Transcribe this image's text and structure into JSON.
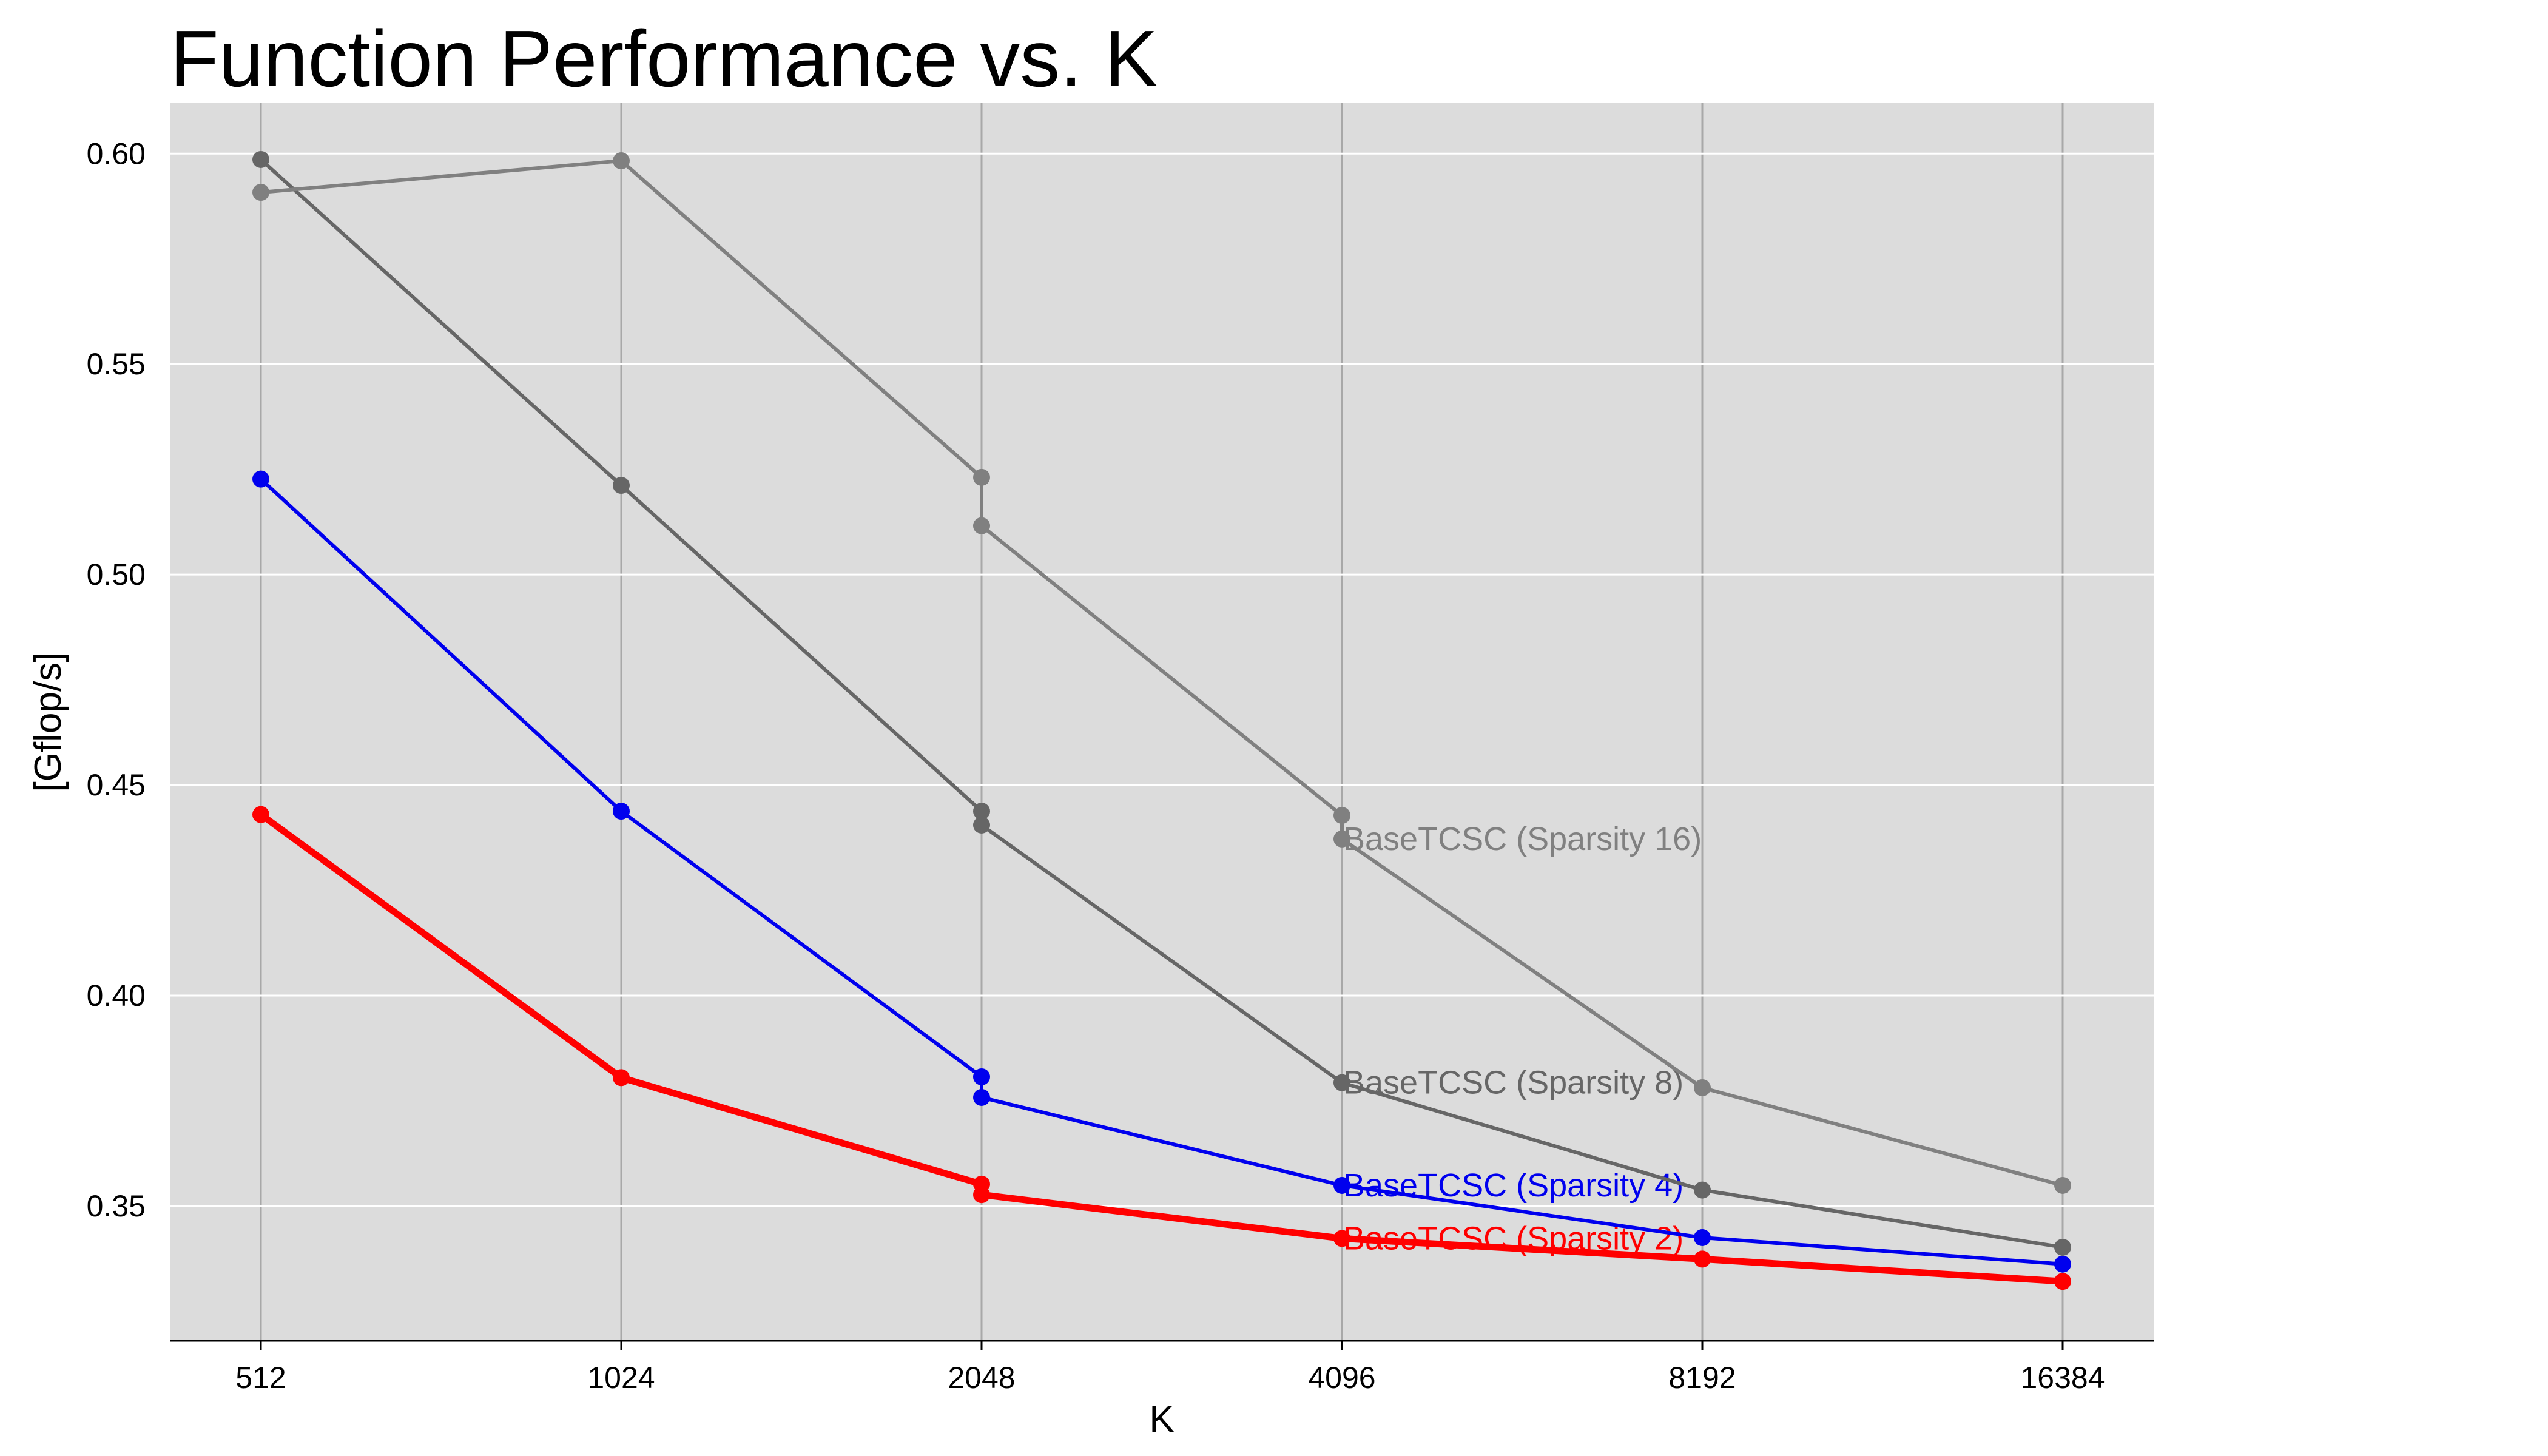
{
  "chart_data": {
    "type": "line",
    "title": "Function Performance vs. K",
    "xlabel": "K",
    "ylabel": "[Gflop/s]",
    "x_scale": "log2",
    "categories": [
      512,
      1024,
      2048,
      4096,
      8192,
      16384
    ],
    "x_tick_labels": [
      "512",
      "1024",
      "2048",
      "4096",
      "8192",
      "16384"
    ],
    "y_ticks": [
      0.35,
      0.4,
      0.45,
      0.5,
      0.55,
      0.6
    ],
    "y_tick_labels": [
      "0.35",
      "0.40",
      "0.45",
      "0.50",
      "0.55",
      "0.60"
    ],
    "ylim": [
      0.318,
      0.612
    ],
    "grid": true,
    "series": [
      {
        "name": "BaseTCSC (Sparsity 2)",
        "color": "#ff0000",
        "line_style": "thick",
        "points": [
          {
            "x": 512,
            "y": 0.443
          },
          {
            "x": 1024,
            "y": 0.3805
          },
          {
            "x": 2048,
            "y": 0.3552
          },
          {
            "x": 2048,
            "y": 0.3527
          },
          {
            "x": 4096,
            "y": 0.3423
          },
          {
            "x": 8192,
            "y": 0.3374
          },
          {
            "x": 16384,
            "y": 0.3321
          }
        ]
      },
      {
        "name": "BaseTCSC (Sparsity 4)",
        "color": "#0000ee",
        "line_style": "normal",
        "points": [
          {
            "x": 512,
            "y": 0.5227
          },
          {
            "x": 1024,
            "y": 0.4438
          },
          {
            "x": 2048,
            "y": 0.3807
          },
          {
            "x": 2048,
            "y": 0.3758
          },
          {
            "x": 4096,
            "y": 0.3549
          },
          {
            "x": 8192,
            "y": 0.3425
          },
          {
            "x": 16384,
            "y": 0.3362
          }
        ]
      },
      {
        "name": "BaseTCSC (Sparsity 8)",
        "color": "#666666",
        "line_style": "normal",
        "points": [
          {
            "x": 512,
            "y": 0.5986
          },
          {
            "x": 1024,
            "y": 0.5212
          },
          {
            "x": 2048,
            "y": 0.4438
          },
          {
            "x": 2048,
            "y": 0.4405
          },
          {
            "x": 4096,
            "y": 0.3793
          },
          {
            "x": 8192,
            "y": 0.3538
          },
          {
            "x": 16384,
            "y": 0.3402
          }
        ]
      },
      {
        "name": "BaseTCSC (Sparsity 16)",
        "color": "#808080",
        "line_style": "normal",
        "points": [
          {
            "x": 512,
            "y": 0.5908
          },
          {
            "x": 1024,
            "y": 0.5983
          },
          {
            "x": 2048,
            "y": 0.5231
          },
          {
            "x": 2048,
            "y": 0.5116
          },
          {
            "x": 4096,
            "y": 0.4428
          },
          {
            "x": 4096,
            "y": 0.4372
          },
          {
            "x": 8192,
            "y": 0.3781
          },
          {
            "x": 16384,
            "y": 0.3549
          }
        ]
      }
    ]
  }
}
